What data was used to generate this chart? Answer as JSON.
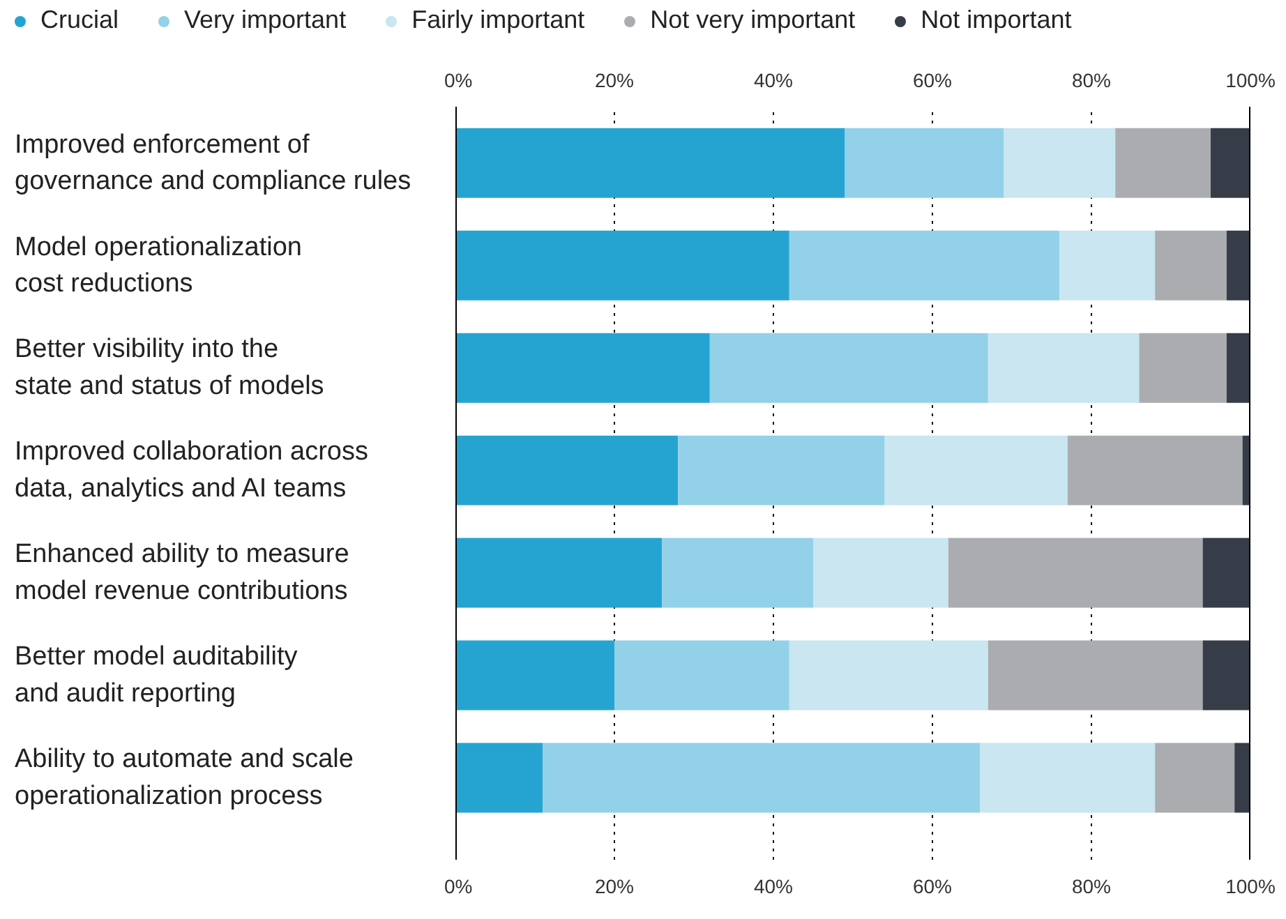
{
  "chart_data": {
    "type": "bar",
    "orientation": "horizontal",
    "stacked": true,
    "categories": [
      "Improved enforcement of governance and compliance rules",
      "Model operationalization cost reductions",
      "Better visibility into the state and status of models",
      "Improved collaboration across data, analytics and AI teams",
      "Enhanced ability to measure model revenue contributions",
      "Better model auditability and audit reporting",
      "Ability to automate and scale operationalization process"
    ],
    "series": [
      {
        "name": "Crucial",
        "color": "#26a4d1",
        "values": [
          49,
          42,
          32,
          28,
          26,
          20,
          11
        ]
      },
      {
        "name": "Very important",
        "color": "#93d1e8",
        "values": [
          20,
          34,
          35,
          26,
          19,
          22,
          55
        ]
      },
      {
        "name": "Fairly important",
        "color": "#c9e6f1",
        "values": [
          14,
          12,
          19,
          23,
          17,
          25,
          22
        ]
      },
      {
        "name": "Not very important",
        "color": "#aaacaf",
        "values": [
          12,
          9,
          11,
          22,
          32,
          27,
          10
        ]
      },
      {
        "name": "Not important",
        "color": "#363d48",
        "values": [
          5,
          3,
          3,
          1,
          6,
          6,
          2
        ]
      }
    ],
    "xlim": [
      0,
      100
    ],
    "xticks": [
      {
        "value": 0,
        "label": "0%"
      },
      {
        "value": 20,
        "label": "20%"
      },
      {
        "value": 40,
        "label": "40%"
      },
      {
        "value": 60,
        "label": "60%"
      },
      {
        "value": 80,
        "label": "80%"
      },
      {
        "value": 100,
        "label": "100%"
      }
    ],
    "x2lim": [
      0,
      100
    ],
    "x2ticks": [
      {
        "value": 0,
        "label": "0%"
      },
      {
        "value": 20,
        "label": "20%"
      },
      {
        "value": 40,
        "label": "40%"
      },
      {
        "value": 60,
        "label": "60%"
      },
      {
        "value": 80,
        "label": "80%"
      },
      {
        "value": 100,
        "label": "100%"
      }
    ],
    "grid": "x",
    "legend": "top"
  }
}
